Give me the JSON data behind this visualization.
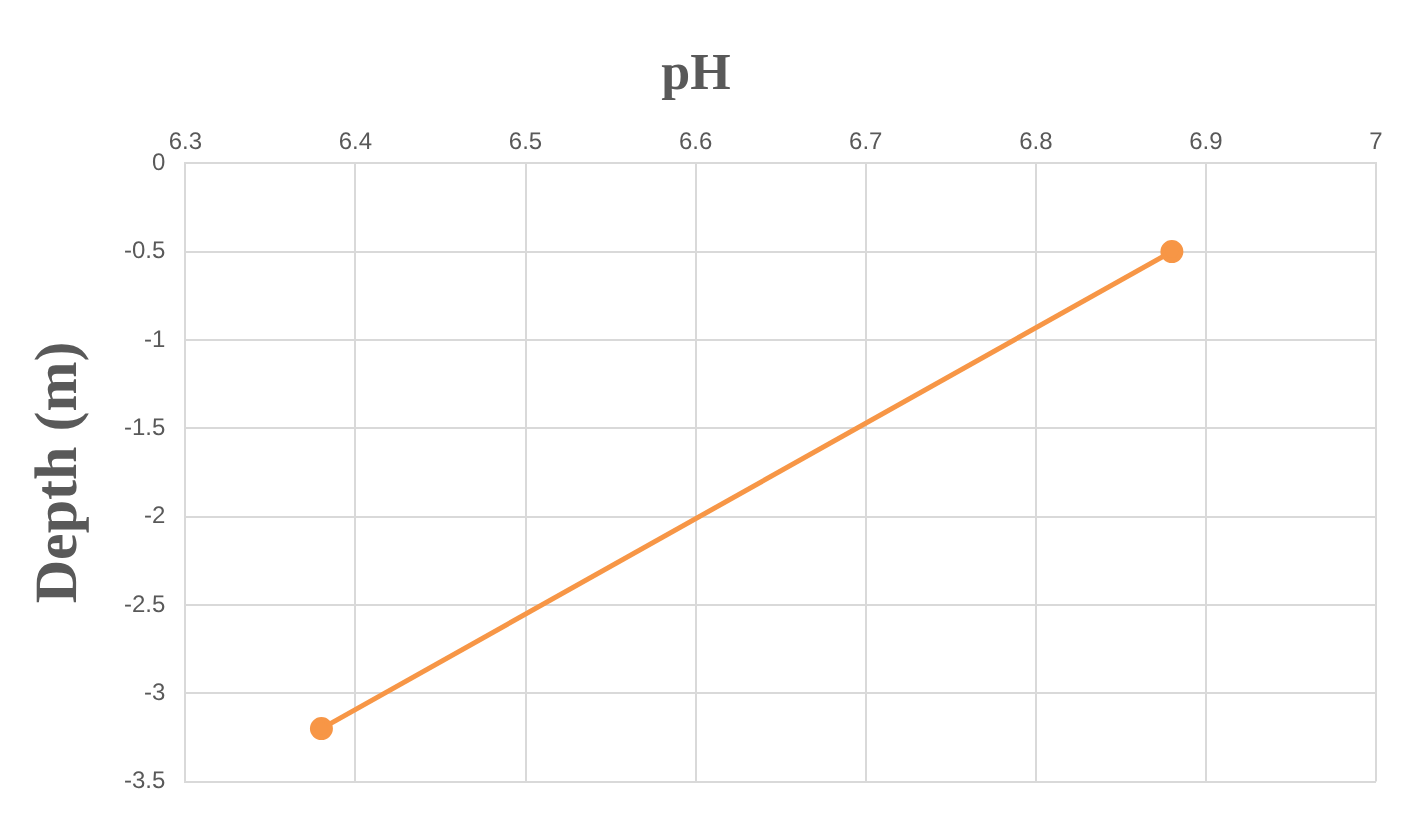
{
  "chart_data": {
    "type": "line",
    "title": "pH",
    "ylabel": "Depth (m)",
    "x": [
      6.38,
      6.88
    ],
    "series": [
      {
        "color": "#f79646",
        "values": [
          -3.2,
          -0.5
        ]
      }
    ],
    "xlim": [
      6.3,
      7
    ],
    "xticks": [
      6.3,
      6.4,
      6.5,
      6.6,
      6.7,
      6.8,
      6.9,
      7
    ],
    "ylim": [
      -3.5,
      0
    ],
    "yticks": [
      0,
      -0.5,
      -1,
      -1.5,
      -2,
      -2.5,
      -3,
      -3.5
    ],
    "grid": true,
    "marker": "circle"
  }
}
